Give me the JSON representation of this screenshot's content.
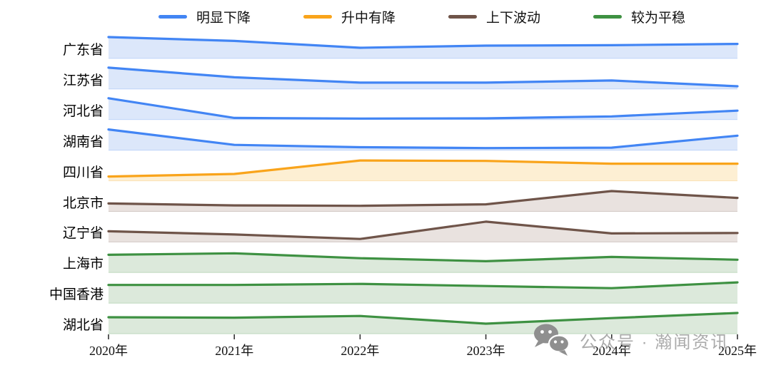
{
  "legend": [
    {
      "label": "明显下降",
      "color": "#4285F4"
    },
    {
      "label": "升中有降",
      "color": "#F9A41B"
    },
    {
      "label": "上下波动",
      "color": "#6F5449"
    },
    {
      "label": "较为平稳",
      "color": "#3E9142"
    }
  ],
  "watermark": {
    "icon": "wechat-icon",
    "text": "公众号 · 瀚闻资讯"
  },
  "chart_data": {
    "type": "area",
    "subtype": "ridgeline-small-multiples",
    "x": [
      "2020年",
      "2021年",
      "2022年",
      "2023年",
      "2024年",
      "2025年"
    ],
    "ylim": [
      0,
      1
    ],
    "grid": false,
    "legend_position": "top",
    "note": "values are relative heights (0-1) within each row band, estimated from pixels; no numeric axis shown",
    "series": [
      {
        "name": "广东省",
        "group": "明显下降",
        "line": "#4285F4",
        "fill": "#DCE7FA",
        "values": [
          1.0,
          0.82,
          0.5,
          0.6,
          0.62,
          0.68
        ]
      },
      {
        "name": "江苏省",
        "group": "明显下降",
        "line": "#4285F4",
        "fill": "#DCE7FA",
        "values": [
          1.0,
          0.55,
          0.3,
          0.3,
          0.4,
          0.13
        ]
      },
      {
        "name": "河北省",
        "group": "明显下降",
        "line": "#4285F4",
        "fill": "#DCE7FA",
        "values": [
          1.0,
          0.08,
          0.05,
          0.06,
          0.15,
          0.42
        ]
      },
      {
        "name": "湖南省",
        "group": "明显下降",
        "line": "#4285F4",
        "fill": "#DCE7FA",
        "values": [
          0.97,
          0.25,
          0.14,
          0.1,
          0.12,
          0.68
        ]
      },
      {
        "name": "四川省",
        "group": "升中有降",
        "line": "#F9A41B",
        "fill": "#FDEFD3",
        "values": [
          0.2,
          0.32,
          0.95,
          0.93,
          0.8,
          0.8
        ]
      },
      {
        "name": "北京市",
        "group": "上下波动",
        "line": "#6F5449",
        "fill": "#E9E2DF",
        "values": [
          0.37,
          0.28,
          0.26,
          0.33,
          0.95,
          0.63
        ]
      },
      {
        "name": "辽宁省",
        "group": "上下波动",
        "line": "#6F5449",
        "fill": "#E9E2DF",
        "values": [
          0.5,
          0.35,
          0.14,
          0.95,
          0.4,
          0.42
        ]
      },
      {
        "name": "上海市",
        "group": "较为平稳",
        "line": "#3E9142",
        "fill": "#DCE9DB",
        "values": [
          0.83,
          0.9,
          0.67,
          0.53,
          0.73,
          0.6
        ]
      },
      {
        "name": "中国香港",
        "group": "较为平稳",
        "line": "#3E9142",
        "fill": "#DCE9DB",
        "values": [
          0.85,
          0.85,
          0.9,
          0.8,
          0.7,
          0.97
        ]
      },
      {
        "name": "湖北省",
        "group": "较为平稳",
        "line": "#3E9142",
        "fill": "#DCE9DB",
        "values": [
          0.77,
          0.75,
          0.83,
          0.47,
          0.73,
          0.97
        ]
      }
    ]
  },
  "layout_values": {
    "tick_color": "#333333"
  }
}
